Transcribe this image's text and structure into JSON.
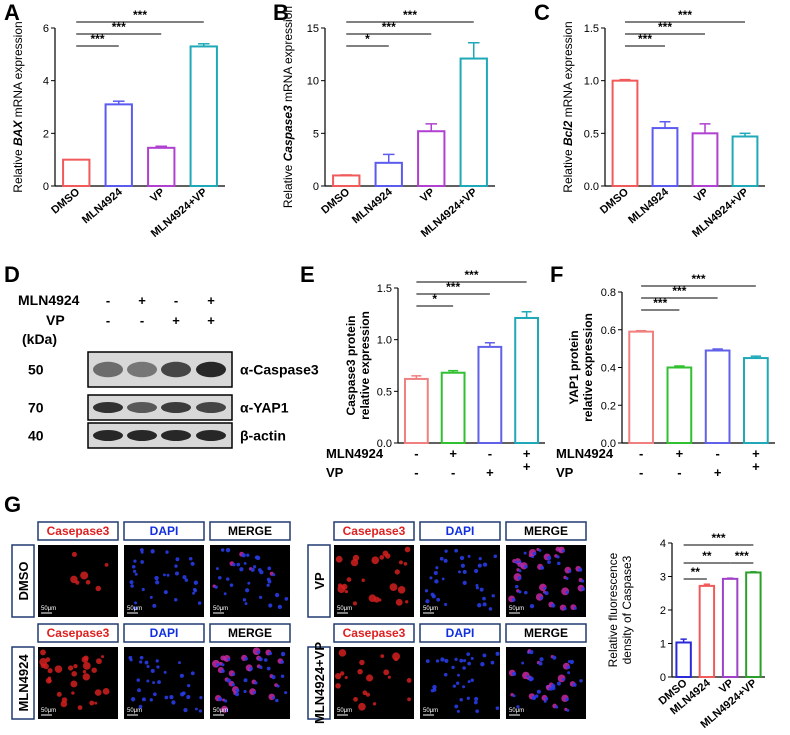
{
  "panel_letters": [
    "A",
    "B",
    "C",
    "D",
    "E",
    "F",
    "G"
  ],
  "significance": [
    "***",
    "**",
    "*"
  ],
  "chart_data": [
    {
      "id": "A",
      "type": "bar",
      "ylabel_parts": [
        "Relative ",
        "BAX",
        " mRNA expression"
      ],
      "ylim": [
        0,
        6
      ],
      "yticks": [
        0,
        2,
        4,
        6
      ],
      "categories": [
        "DMSO",
        "MLN4924",
        "VP",
        "MLN4924+VP"
      ],
      "values": [
        1.0,
        3.1,
        1.45,
        5.3
      ],
      "errors": [
        0.0,
        0.12,
        0.06,
        0.1
      ],
      "colors": [
        "#f05a5a",
        "#5b5bf0",
        "#b040d0",
        "#1fa8b8"
      ],
      "comparisons": [
        {
          "from": 0,
          "to": 1,
          "label": "***"
        },
        {
          "from": 0,
          "to": 2,
          "label": "***"
        },
        {
          "from": 0,
          "to": 3,
          "label": "***"
        }
      ]
    },
    {
      "id": "B",
      "type": "bar",
      "ylabel_parts": [
        "Relative ",
        "Caspase3",
        " mRNA expression"
      ],
      "ylim": [
        0,
        15
      ],
      "yticks": [
        0,
        5,
        10,
        15
      ],
      "categories": [
        "DMSO",
        "MLN4924",
        "VP",
        "MLN4924+VP"
      ],
      "values": [
        1.0,
        2.2,
        5.2,
        12.1
      ],
      "errors": [
        0.05,
        0.8,
        0.7,
        1.5
      ],
      "colors": [
        "#f05a5a",
        "#5b5bf0",
        "#b040d0",
        "#1fa8b8"
      ],
      "comparisons": [
        {
          "from": 0,
          "to": 1,
          "label": "*"
        },
        {
          "from": 0,
          "to": 2,
          "label": "***"
        },
        {
          "from": 0,
          "to": 3,
          "label": "***"
        }
      ]
    },
    {
      "id": "C",
      "type": "bar",
      "ylabel_parts": [
        "Relative ",
        "Bcl2",
        " mRNA expression"
      ],
      "ylim": [
        0,
        1.5
      ],
      "yticks": [
        0.0,
        0.5,
        1.0,
        1.5
      ],
      "categories": [
        "DMSO",
        "MLN4924",
        "VP",
        "MLN4924+VP"
      ],
      "values": [
        1.0,
        0.55,
        0.5,
        0.47
      ],
      "errors": [
        0.01,
        0.06,
        0.09,
        0.03
      ],
      "colors": [
        "#f05a5a",
        "#5b5bf0",
        "#b040d0",
        "#1fa8b8"
      ],
      "comparisons": [
        {
          "from": 0,
          "to": 1,
          "label": "***"
        },
        {
          "from": 0,
          "to": 2,
          "label": "***"
        },
        {
          "from": 0,
          "to": 3,
          "label": "***"
        }
      ]
    },
    {
      "id": "E",
      "type": "bar",
      "ylabel_lines": [
        "Caspase3 protein",
        "relative expression"
      ],
      "ylim": [
        0,
        1.5
      ],
      "yticks": [
        0.0,
        0.5,
        1.0,
        1.5
      ],
      "categories": [
        "MLN4924 - / VP -",
        "MLN4924 + / VP -",
        "MLN4924 - / VP +",
        "MLN4924 + / VP +"
      ],
      "values": [
        0.62,
        0.68,
        0.93,
        1.21
      ],
      "errors": [
        0.03,
        0.02,
        0.04,
        0.06
      ],
      "colors": [
        "#f08080",
        "#30c030",
        "#6060e8",
        "#1fa8b8"
      ],
      "comparisons": [
        {
          "from": 0,
          "to": 1,
          "label": "*"
        },
        {
          "from": 0,
          "to": 2,
          "label": "***"
        },
        {
          "from": 0,
          "to": 3,
          "label": "***"
        }
      ]
    },
    {
      "id": "F",
      "type": "bar",
      "ylabel_lines": [
        "YAP1 protein",
        "relative expression"
      ],
      "ylim": [
        0,
        0.8
      ],
      "yticks": [
        0.0,
        0.2,
        0.4,
        0.6,
        0.8
      ],
      "categories": [
        "MLN4924 - / VP -",
        "MLN4924 + / VP -",
        "MLN4924 - / VP +",
        "MLN4924 + / VP +"
      ],
      "values": [
        0.59,
        0.4,
        0.49,
        0.45
      ],
      "errors": [
        0.005,
        0.008,
        0.008,
        0.01
      ],
      "colors": [
        "#f08080",
        "#30c030",
        "#6060e8",
        "#1fa8b8"
      ],
      "comparisons": [
        {
          "from": 0,
          "to": 1,
          "label": "***"
        },
        {
          "from": 0,
          "to": 2,
          "label": "***"
        },
        {
          "from": 0,
          "to": 3,
          "label": "***"
        }
      ]
    },
    {
      "id": "G",
      "type": "bar",
      "ylabel_lines": [
        "Relative fluorescence",
        "density of Caspase3"
      ],
      "ylim": [
        0,
        4
      ],
      "yticks": [
        0,
        1,
        2,
        3,
        4
      ],
      "categories": [
        "DMSO",
        "MLN4924",
        "VP",
        "MLN4924+VP"
      ],
      "values": [
        1.03,
        2.72,
        2.93,
        3.12
      ],
      "errors": [
        0.1,
        0.05,
        0.02,
        0.02
      ],
      "colors": [
        "#2a2ad8",
        "#f05a5a",
        "#a040c8",
        "#2aa02a"
      ],
      "comparisons": [
        {
          "from": 0,
          "to": 1,
          "label": "**"
        },
        {
          "from": 0,
          "to": 2,
          "label": "**"
        },
        {
          "from": 0,
          "to": 3,
          "label": "***"
        },
        {
          "from": 2,
          "to": 3,
          "label": "***"
        }
      ]
    }
  ],
  "treatment_table": {
    "rows": [
      "MLN4924",
      "VP"
    ],
    "signs": [
      [
        "-",
        "+",
        "-",
        "+"
      ],
      [
        "-",
        "-",
        "+",
        "+"
      ]
    ]
  },
  "western_blot": {
    "unit_label": "(kDa)",
    "treatments": {
      "rows": [
        "MLN4924",
        "VP"
      ],
      "signs": [
        [
          "-",
          "+",
          "-",
          "+"
        ],
        [
          "-",
          "-",
          "+",
          "+"
        ]
      ]
    },
    "bands": [
      {
        "kda": "50",
        "label": "α-Caspase3"
      },
      {
        "kda": "70",
        "label": "α-YAP1"
      },
      {
        "kda": "40",
        "label": "β-actin"
      }
    ]
  },
  "fluorescence": {
    "channel_labels": [
      "Casepase3",
      "DAPI",
      "MERGE"
    ],
    "channel_colors": [
      "#e02020",
      "#1030e0",
      "#000000"
    ],
    "conditions": [
      "DMSO",
      "MLN4924",
      "VP",
      "MLN4924+VP"
    ],
    "scale_bar": "50μm"
  }
}
